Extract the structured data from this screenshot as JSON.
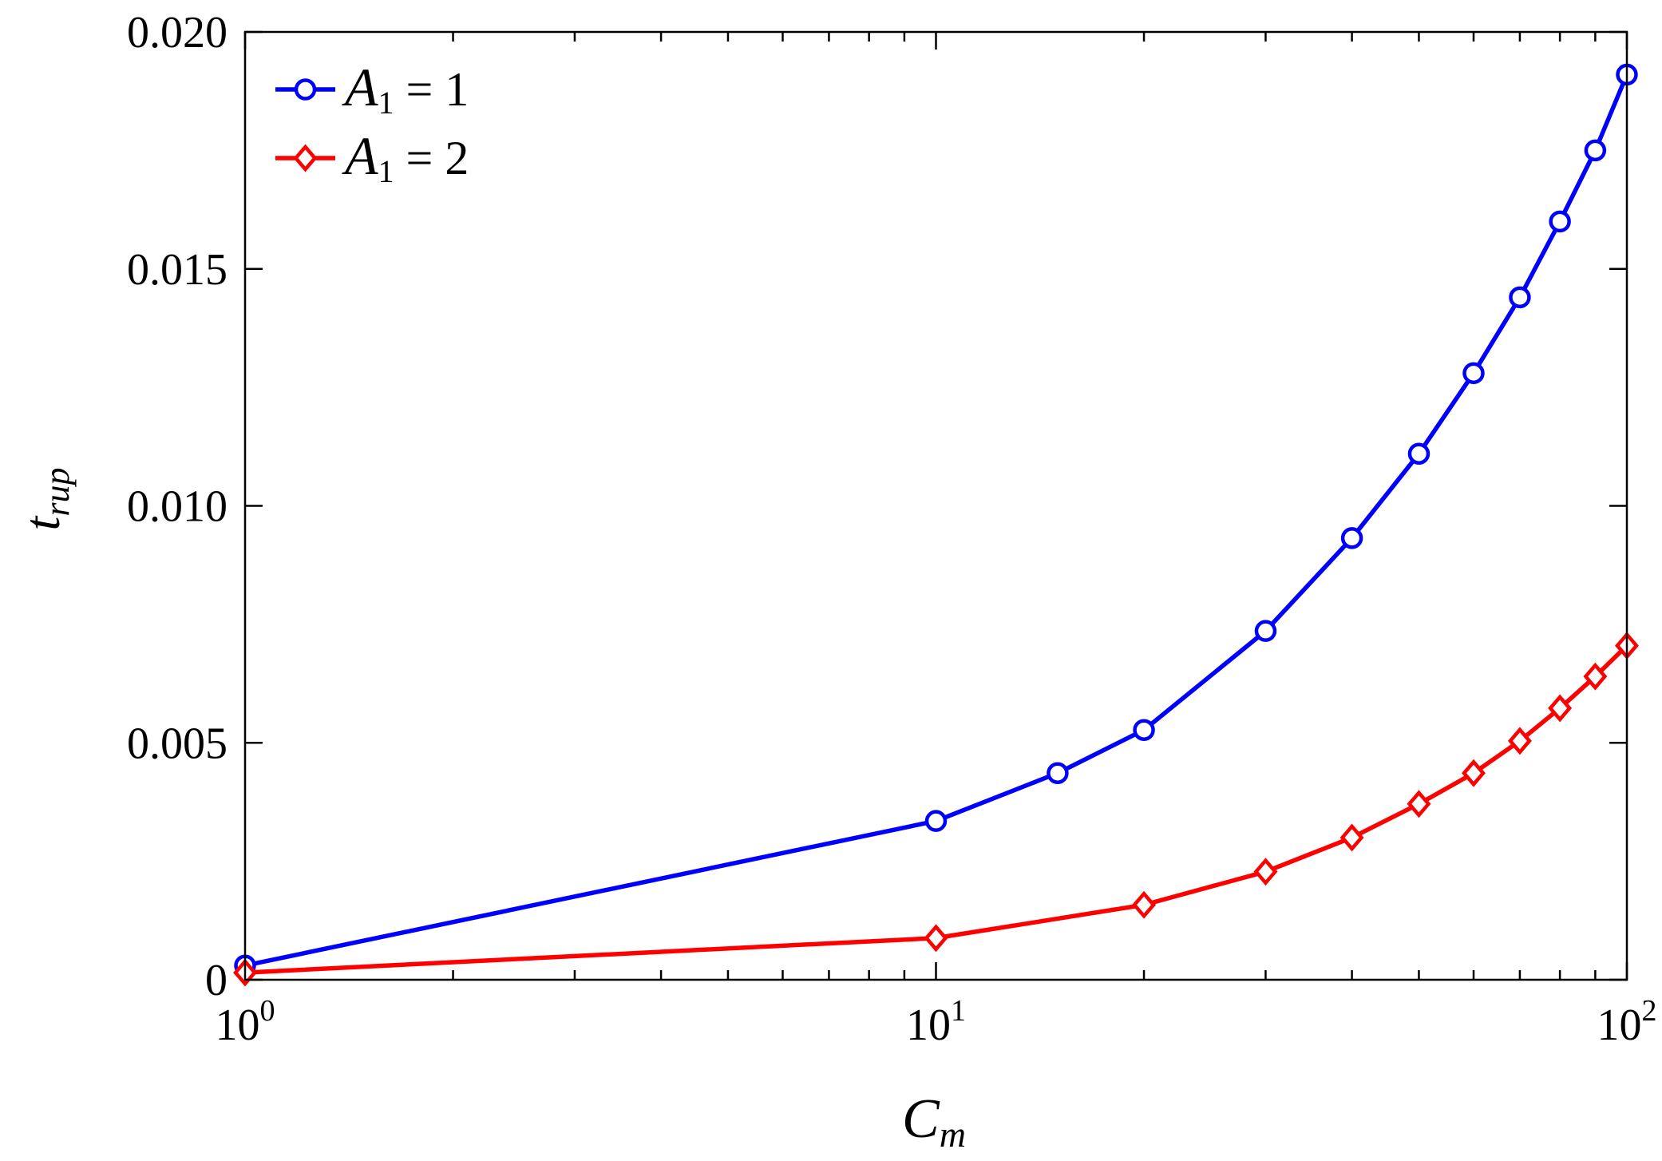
{
  "chart_data": {
    "type": "line",
    "x_scale": "log",
    "x_tick_base": "10",
    "x_tick_exponents": [
      "0",
      "1",
      "2"
    ],
    "xlim": [
      1,
      100
    ],
    "ylim": [
      0,
      0.02
    ],
    "y_ticks": [
      {
        "value": 0,
        "label": "0"
      },
      {
        "value": 0.005,
        "label": "0.005"
      },
      {
        "value": 0.01,
        "label": "0.010"
      },
      {
        "value": 0.015,
        "label": "0.015"
      },
      {
        "value": 0.02,
        "label": "0.020"
      }
    ],
    "xlabel": {
      "main": "C",
      "sub": "m"
    },
    "ylabel": {
      "main": "t",
      "sub": "rup"
    },
    "grid": false,
    "legend_position": "top-left",
    "series": [
      {
        "name": "A1 = 1",
        "legend": {
          "main": "A",
          "sub": "1",
          "rest": " = 1"
        },
        "color": "#0000ff",
        "marker": "circle",
        "x": [
          1,
          10,
          15,
          20,
          30,
          40,
          50,
          60,
          70,
          80,
          90,
          100
        ],
        "y": [
          0.0003,
          0.00335,
          0.00436,
          0.00527,
          0.00736,
          0.00932,
          0.0111,
          0.0128,
          0.0144,
          0.016,
          0.0175,
          0.0191
        ]
      },
      {
        "name": "A1 = 2",
        "legend": {
          "main": "A",
          "sub": "1",
          "rest": " = 2"
        },
        "color": "#ff0000",
        "marker": "diamond",
        "x": [
          1,
          10,
          20,
          30,
          40,
          50,
          60,
          70,
          80,
          90,
          100
        ],
        "y": [
          0.00015,
          0.00088,
          0.00158,
          0.00228,
          0.003,
          0.00371,
          0.00436,
          0.00504,
          0.00573,
          0.0064,
          0.00705
        ]
      }
    ]
  }
}
